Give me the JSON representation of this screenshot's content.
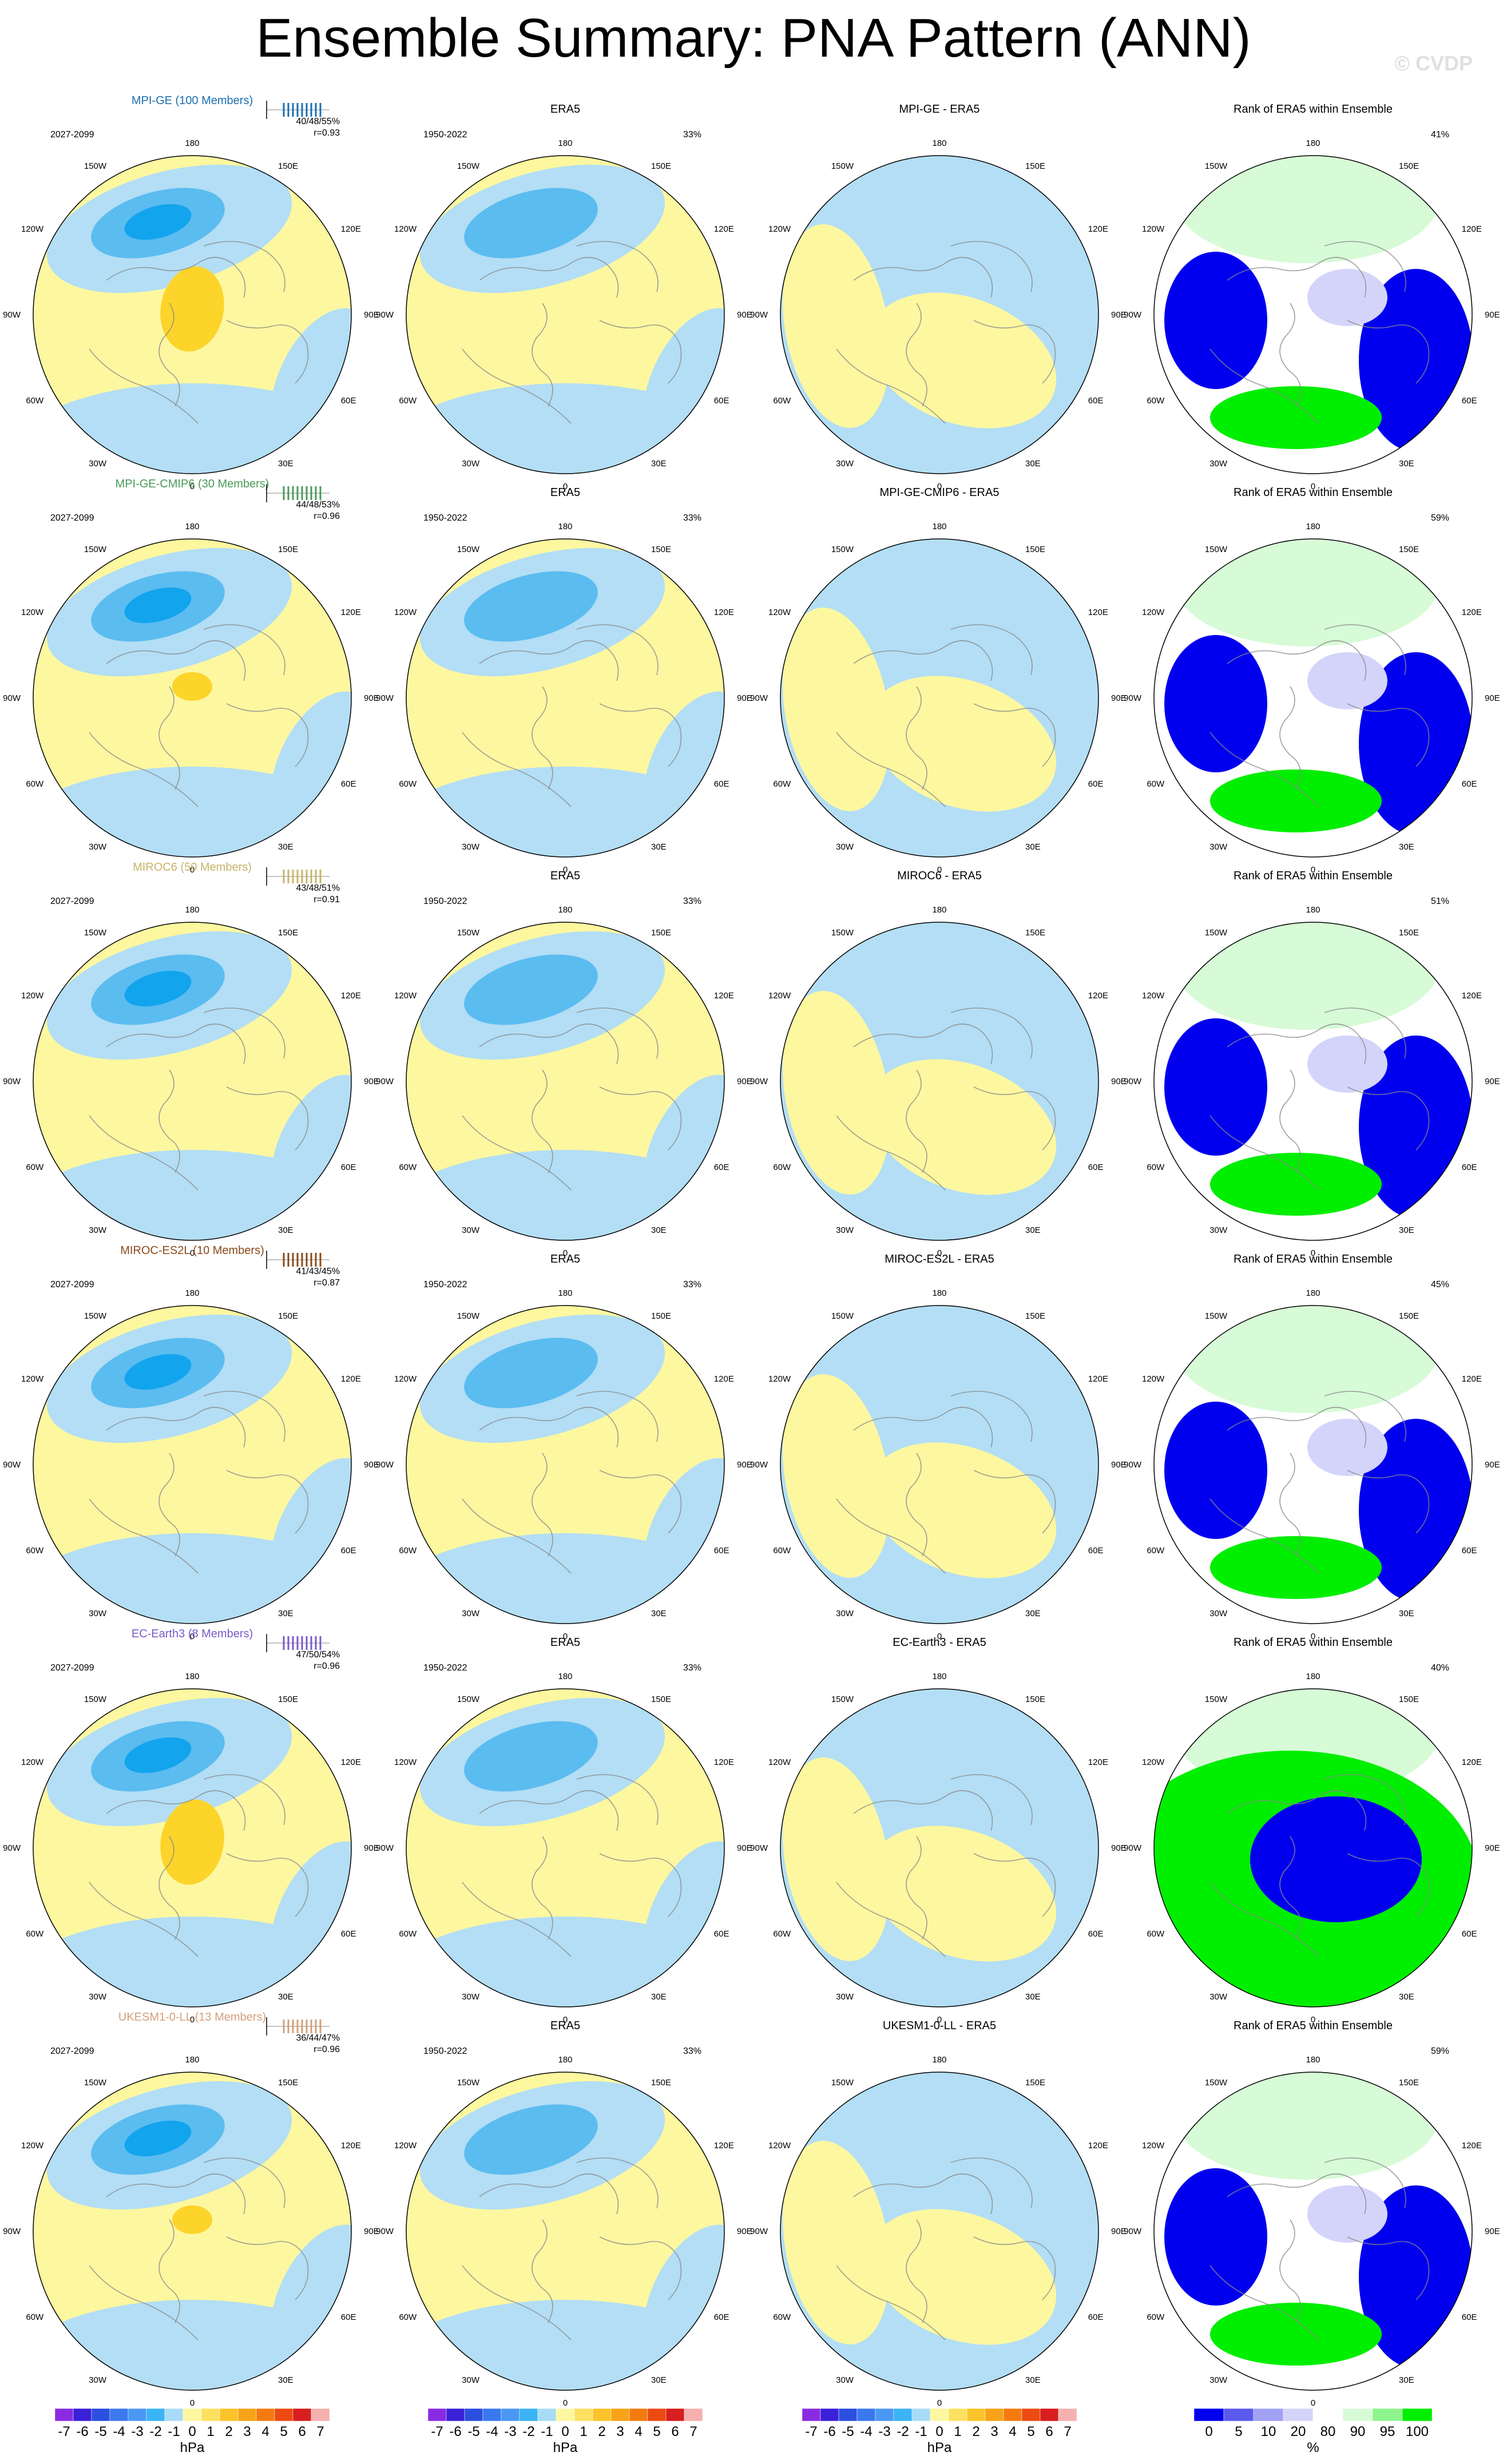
{
  "title": "Ensemble Summary: PNA Pattern (ANN)",
  "watermark": "© CVDP",
  "colors": {
    "neg_light": "#b3def5",
    "neg_mid": "#5bbcf0",
    "neg_strong": "#13a4ee",
    "pos_light": "#fdf7a0",
    "pos_strong": "#fcd42a",
    "rank_low_strong": "#0000ee",
    "rank_low_light": "#d4d4fb",
    "rank_high_light": "#d6fbd6",
    "rank_high_strong": "#00ee00"
  },
  "lon_labels": [
    "180",
    "150E",
    "120E",
    "90E",
    "60E",
    "30E",
    "0",
    "30W",
    "60W",
    "90W",
    "120W",
    "150W"
  ],
  "rows": [
    {
      "model": "MPI-GE (100 Members)",
      "model_color": "#1a6fb0",
      "period": "2027-2099",
      "stats": "40/48/55%",
      "r": "r=0.93",
      "diff_title": "MPI-GE - ERA5",
      "rank_pct": "41%"
    },
    {
      "model": "MPI-GE-CMIP6 (30 Members)",
      "model_color": "#4a9a5a",
      "period": "2027-2099",
      "stats": "44/48/53%",
      "r": "r=0.96",
      "diff_title": "MPI-GE-CMIP6 - ERA5",
      "rank_pct": "59%"
    },
    {
      "model": "MIROC6 (50 Members)",
      "model_color": "#c8b46a",
      "period": "2027-2099",
      "stats": "43/48/51%",
      "r": "r=0.91",
      "diff_title": "MIROC6 - ERA5",
      "rank_pct": "51%"
    },
    {
      "model": "MIROC-ES2L (10 Members)",
      "model_color": "#8a4a1a",
      "period": "2027-2099",
      "stats": "41/43/45%",
      "r": "r=0.87",
      "diff_title": "MIROC-ES2L - ERA5",
      "rank_pct": "45%"
    },
    {
      "model": "EC-Earth3 (8 Members)",
      "model_color": "#7a5ac8",
      "period": "2027-2099",
      "stats": "47/50/54%",
      "r": "r=0.96",
      "diff_title": "EC-Earth3 - ERA5",
      "rank_pct": "40%"
    },
    {
      "model": "UKESM1-0-LL (13 Members)",
      "model_color": "#d4a07a",
      "period": "2027-2099",
      "stats": "36/44/47%",
      "r": "r=0.96",
      "diff_title": "UKESM1-0-LL - ERA5",
      "rank_pct": "59%"
    }
  ],
  "era5": {
    "title": "ERA5",
    "period": "1950-2022",
    "pct": "33%"
  },
  "rank_title": "Rank of ERA5 within Ensemble",
  "colorbar_hpa": {
    "labels": [
      "-7",
      "-6",
      "-5",
      "-4",
      "-3",
      "-2",
      "-1",
      "0",
      "1",
      "2",
      "3",
      "4",
      "5",
      "6",
      "7"
    ],
    "unit": "hPa",
    "colors": [
      "#8a2be2",
      "#3a20d8",
      "#2c4fe0",
      "#3a78ee",
      "#4a98f4",
      "#3ab4f4",
      "#a8dcf6",
      "#fdf7a0",
      "#fce060",
      "#fcc42a",
      "#f8a218",
      "#f47a10",
      "#ec4a10",
      "#d81e1e",
      "#f6b0b0"
    ]
  },
  "colorbar_rank": {
    "labels": [
      "0",
      "5",
      "10",
      "20",
      "80",
      "90",
      "95",
      "100"
    ],
    "unit": "%",
    "colors": [
      "#0000ee",
      "#5a5aee",
      "#a0a0f4",
      "#d4d4fb",
      "#ffffff",
      "#d6fbd6",
      "#8ef48e",
      "#00ee00"
    ]
  }
}
